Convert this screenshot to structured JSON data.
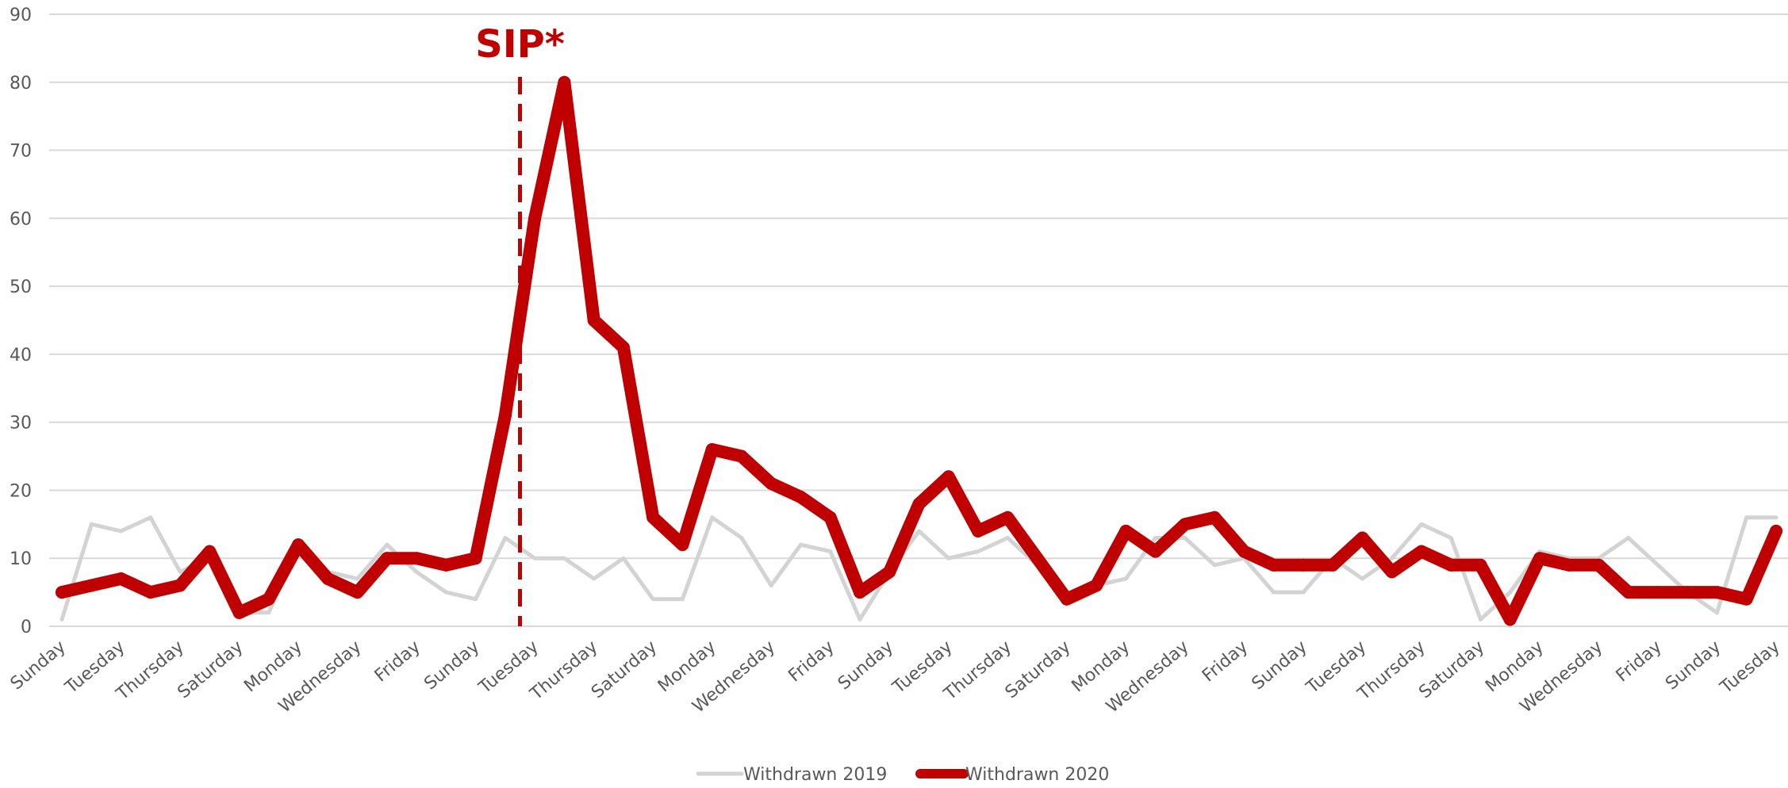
{
  "chart_data": {
    "type": "line",
    "title": "",
    "xlabel": "",
    "ylabel": "",
    "ylim": [
      0,
      90
    ],
    "yticks": [
      0,
      10,
      20,
      30,
      40,
      50,
      60,
      70,
      80,
      90
    ],
    "grid": true,
    "legend_position": "bottom",
    "x": [
      "Sunday",
      "Monday",
      "Tuesday",
      "Wednesday",
      "Thursday",
      "Friday",
      "Saturday",
      "Sunday",
      "Monday",
      "Tuesday",
      "Wednesday",
      "Thursday",
      "Friday",
      "Saturday",
      "Sunday",
      "Monday",
      "Tuesday",
      "Wednesday",
      "Thursday",
      "Friday",
      "Saturday",
      "Sunday",
      "Monday",
      "Tuesday",
      "Wednesday",
      "Thursday",
      "Friday",
      "Saturday",
      "Sunday",
      "Monday",
      "Tuesday",
      "Wednesday",
      "Thursday",
      "Friday",
      "Saturday",
      "Sunday",
      "Monday",
      "Tuesday",
      "Wednesday",
      "Thursday",
      "Friday",
      "Saturday",
      "Sunday",
      "Monday",
      "Tuesday",
      "Wednesday",
      "Thursday",
      "Friday",
      "Saturday",
      "Sunday",
      "Monday",
      "Tuesday",
      "Wednesday",
      "Thursday",
      "Friday",
      "Saturday",
      "Sunday",
      "Monday",
      "Tuesday"
    ],
    "x_tick_every": 2,
    "series": [
      {
        "name": "Withdrawn 2019",
        "color": "#d3d3d3",
        "values": [
          1,
          15,
          14,
          16,
          8,
          10,
          2,
          2,
          12,
          8,
          7,
          12,
          8,
          5,
          4,
          13,
          10,
          10,
          7,
          10,
          4,
          4,
          16,
          13,
          6,
          12,
          11,
          1,
          8,
          14,
          10,
          11,
          13,
          9,
          4,
          6,
          7,
          13,
          13,
          9,
          10,
          5,
          5,
          10,
          7,
          10,
          15,
          13,
          1,
          5,
          11,
          10,
          10,
          13,
          9,
          5,
          2,
          16,
          16
        ],
        "width": 5
      },
      {
        "name": "Withdrawn 2020",
        "color": "#c00000",
        "values": [
          5,
          6,
          7,
          5,
          6,
          11,
          2,
          4,
          12,
          7,
          5,
          10,
          10,
          9,
          10,
          31,
          60,
          80,
          45,
          41,
          16,
          12,
          26,
          25,
          21,
          19,
          16,
          5,
          8,
          18,
          22,
          14,
          16,
          10,
          4,
          6,
          14,
          11,
          15,
          16,
          11,
          9,
          9,
          9,
          13,
          8,
          11,
          9,
          9,
          1,
          10,
          9,
          9,
          5,
          5,
          5,
          5,
          4,
          14
        ],
        "width": 16
      }
    ],
    "annotations": [
      {
        "label": "SIP*",
        "x_index": 15.5,
        "color": "#c00000",
        "style": "dashed"
      }
    ]
  }
}
